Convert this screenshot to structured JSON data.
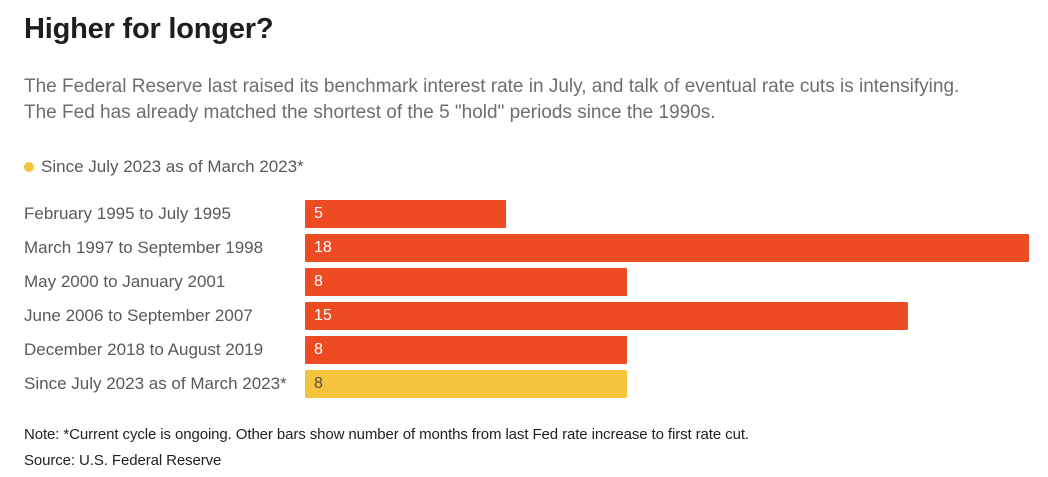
{
  "title": "Higher for longer?",
  "subtitle": {
    "line1": "The Federal Reserve last raised its benchmark interest rate in July, and talk of eventual rate cuts is intensifying.",
    "line2": "The Fed has already matched the shortest of the 5 \"hold\" periods since the 1990s."
  },
  "legend": {
    "label": "Since July 2023 as of March 2023*"
  },
  "colors": {
    "bar_default": "#ED4C23",
    "bar_highlight": "#F5C33C",
    "value_on_default": "#FFFFFF",
    "value_on_highlight": "#4D4D4D",
    "legend_dot": "#F5C33C"
  },
  "chart_data": {
    "type": "bar",
    "orientation": "horizontal",
    "title": "Higher for longer?",
    "xlabel": "Months from last Fed rate increase to first rate cut",
    "ylabel": "",
    "xlim": [
      0,
      18
    ],
    "grid": false,
    "legend_position": "top-left",
    "categories": [
      "February 1995 to July 1995",
      "March 1997 to September 1998",
      "May 2000 to January 2001",
      "June 2006 to September 2007",
      "December 2018 to August 2019",
      "Since July 2023 as of March 2023*"
    ],
    "values": [
      5,
      18,
      8,
      15,
      8,
      8
    ],
    "highlight_index": 5,
    "unit": "months"
  },
  "note": "Note: *Current cycle is ongoing. Other bars show number of months from last Fed rate increase to first rate cut.",
  "source": "Source: U.S. Federal Reserve"
}
